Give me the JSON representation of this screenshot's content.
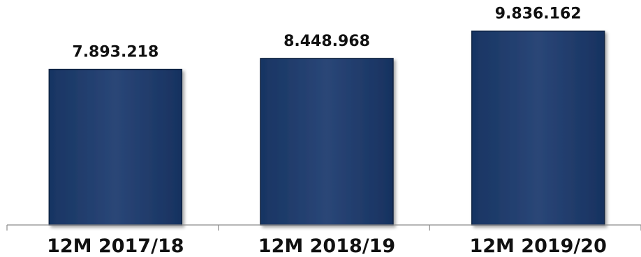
{
  "chart_data": {
    "type": "bar",
    "categories": [
      "12M 2017/18",
      "12M 2018/19",
      "12M 2019/20"
    ],
    "values": [
      7893218,
      8448968,
      9836162
    ],
    "value_labels": [
      "7.893.218",
      "8.448.968",
      "9.836.162"
    ],
    "title": "",
    "xlabel": "",
    "ylabel": "",
    "ylim": [
      0,
      10000000
    ],
    "grid": false,
    "legend": "none",
    "bar_color": "#24406f",
    "bar_edge_color": "#0f2040"
  }
}
